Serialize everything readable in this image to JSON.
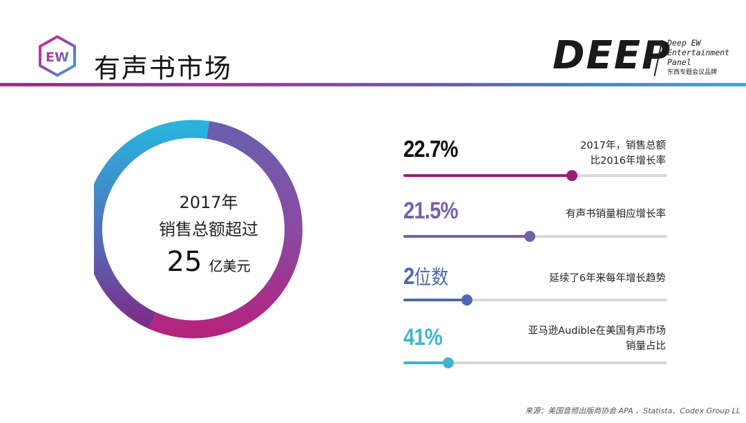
{
  "header": {
    "title": "有声书市场",
    "ew_logo_letters": "EW",
    "brand": {
      "wordmark": "DEEP",
      "line1": "Deep EW",
      "line2": "Entertainment",
      "line3": "Panel",
      "line4": "东西专题会议品牌"
    },
    "rule_colors": [
      "#b3247f",
      "#6a5fae",
      "#2ab2dc"
    ]
  },
  "donut": {
    "line1": "2017年",
    "line2": "销售总额超过",
    "number": "25",
    "unit": "亿美元",
    "gradient_colors": [
      "#6a5fae",
      "#9a3f93",
      "#b3247f",
      "#2ab2dc"
    ]
  },
  "stats": [
    {
      "value": "22.7%",
      "desc": [
        "2017年，销售总额",
        "比2016年增长率"
      ],
      "fraction": 0.64,
      "color": "#9c1c7a"
    },
    {
      "value": "21.5%",
      "desc": [
        "有声书销量相应增长率"
      ],
      "fraction": 0.48,
      "color": "#7462a8"
    },
    {
      "value_num": "2",
      "value_cn": "位数",
      "desc": [
        "延续了6年来每年增长趋势"
      ],
      "fraction": 0.24,
      "color": "#4e6aae"
    },
    {
      "value": "41%",
      "desc": [
        "亚马逊Audible在美国有声市场",
        "销量占比"
      ],
      "fraction": 0.17,
      "color": "#3fb5d0"
    }
  ],
  "footer": {
    "source": "来源：美国音频出版商协会 APA 、Statista、Codex Group LL"
  }
}
